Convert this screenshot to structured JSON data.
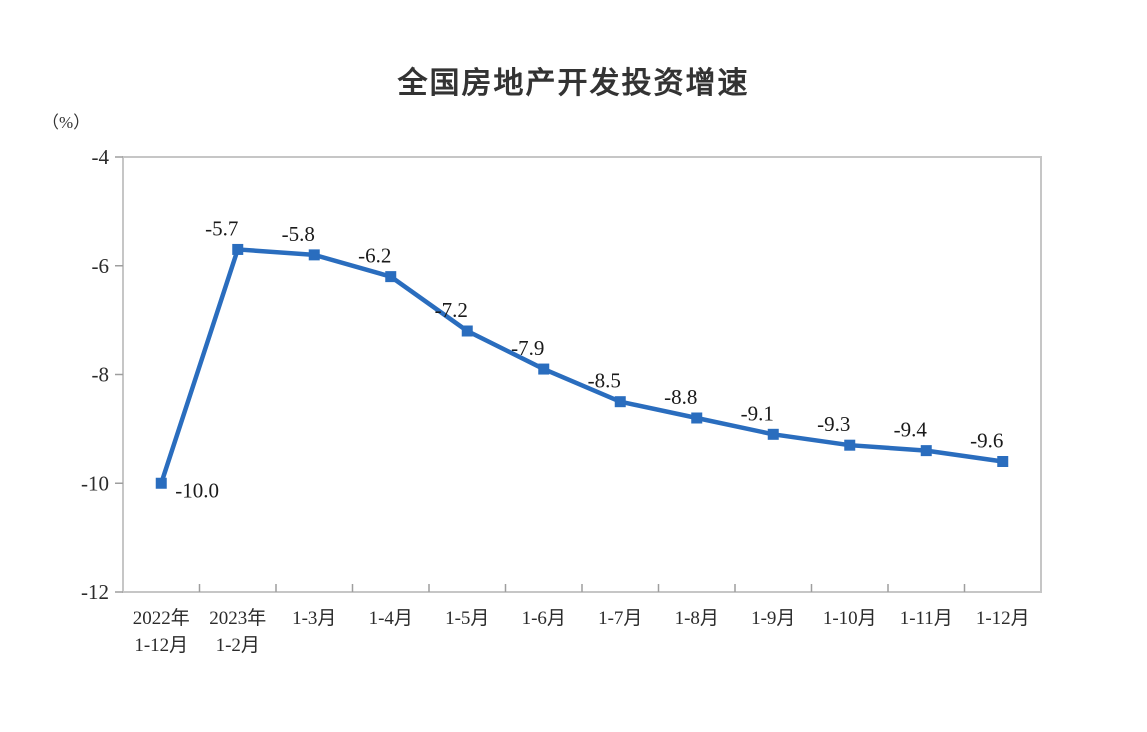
{
  "chart_data": {
    "type": "line",
    "title": "全国房地产开发投资增速",
    "unit_label": "（%）",
    "categories": [
      [
        "2022年",
        "1-12月"
      ],
      [
        "2023年",
        "1-2月"
      ],
      [
        "1-3月"
      ],
      [
        "1-4月"
      ],
      [
        "1-5月"
      ],
      [
        "1-6月"
      ],
      [
        "1-7月"
      ],
      [
        "1-8月"
      ],
      [
        "1-9月"
      ],
      [
        "1-10月"
      ],
      [
        "1-11月"
      ],
      [
        "1-12月"
      ]
    ],
    "values": [
      -10.0,
      -5.7,
      -5.8,
      -6.2,
      -7.2,
      -7.9,
      -8.5,
      -8.8,
      -9.1,
      -9.3,
      -9.4,
      -9.6
    ],
    "point_labels": [
      "-10.0",
      "-5.7",
      "-5.8",
      "-6.2",
      "-7.2",
      "-7.9",
      "-8.5",
      "-8.8",
      "-9.1",
      "-9.3",
      "-9.4",
      "-9.6"
    ],
    "ylim": [
      -12,
      -4
    ],
    "yticks": [
      -4,
      -6,
      -8,
      -10,
      -12
    ],
    "ytick_labels": [
      "-4",
      "-6",
      "-8",
      "-10",
      "-12"
    ],
    "grid": false,
    "legend": "none",
    "colors": {
      "line": "#2A6DBE",
      "marker": "#2A6DBE",
      "frame": "#c6c6c6",
      "tick": "#9e9e9e",
      "axis_text": "#2b2b2b",
      "label_text": "#1a1a1a",
      "title_text": "#333333"
    }
  }
}
